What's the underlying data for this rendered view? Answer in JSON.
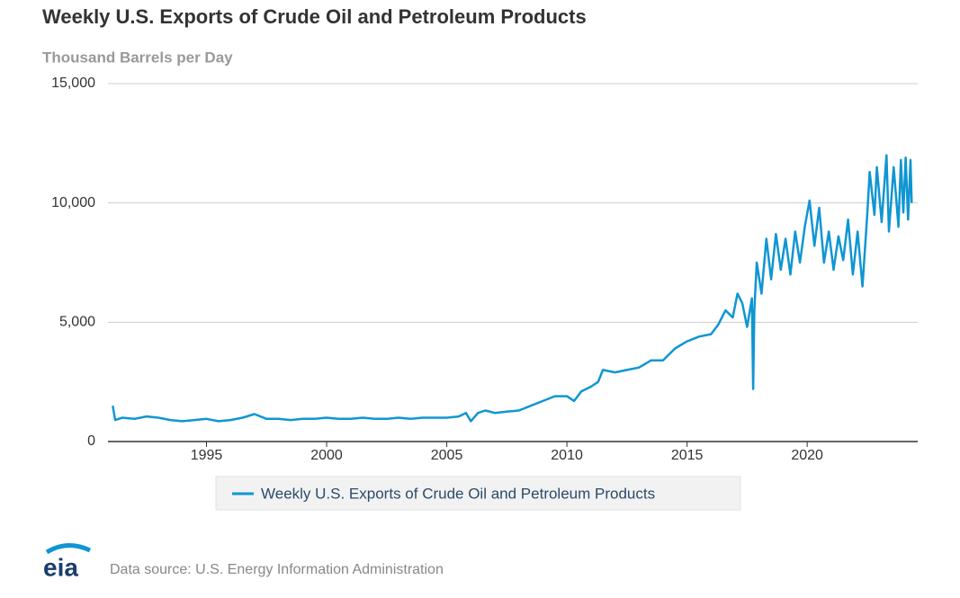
{
  "chart_data": {
    "type": "line",
    "title": "Weekly U.S. Exports of Crude Oil and Petroleum Products",
    "y_label": "Thousand Barrels per Day",
    "source": "Data source: U.S. Energy Information Administration",
    "logo": "eia",
    "xlim": [
      1990.9,
      2024.6
    ],
    "xticks": [
      1995,
      2000,
      2005,
      2010,
      2015,
      2020
    ],
    "ylim": [
      0,
      15000
    ],
    "yticks": [
      0,
      {
        "value": 5000,
        "label": "5,000"
      },
      {
        "value": 10000,
        "label": "10,000"
      },
      {
        "value": 15000,
        "label": "15,000"
      }
    ],
    "grid": true,
    "x": [
      1991.1,
      1991.2,
      1991.5,
      1992,
      1992.5,
      1993,
      1993.5,
      1994,
      1994.5,
      1995,
      1995.5,
      1996,
      1996.5,
      1997,
      1997.5,
      1998,
      1998.5,
      1999,
      1999.5,
      2000,
      2000.5,
      2001,
      2001.5,
      2002,
      2002.5,
      2003,
      2003.5,
      2004,
      2004.5,
      2005,
      2005.5,
      2005.8,
      2006,
      2006.3,
      2006.6,
      2007,
      2007.5,
      2008,
      2008.5,
      2009,
      2009.5,
      2010,
      2010.3,
      2010.6,
      2011,
      2011.3,
      2011.5,
      2012,
      2012.5,
      2013,
      2013.5,
      2014,
      2014.5,
      2015,
      2015.5,
      2016,
      2016.3,
      2016.6,
      2016.9,
      2017.1,
      2017.3,
      2017.5,
      2017.7,
      2017.75,
      2017.8,
      2017.9,
      2018.1,
      2018.3,
      2018.5,
      2018.7,
      2018.9,
      2019.1,
      2019.3,
      2019.5,
      2019.7,
      2019.9,
      2020.1,
      2020.3,
      2020.5,
      2020.7,
      2020.9,
      2021.1,
      2021.3,
      2021.5,
      2021.7,
      2021.9,
      2022.1,
      2022.3,
      2022.5,
      2022.6,
      2022.8,
      2022.9,
      2023.1,
      2023.3,
      2023.4,
      2023.6,
      2023.8,
      2023.9,
      2024.0,
      2024.1,
      2024.2,
      2024.3,
      2024.35
    ],
    "series": [
      {
        "name": "Weekly U.S. Exports of Crude Oil and Petroleum Products",
        "color": "#0f96d2",
        "values": [
          1500,
          900,
          1000,
          950,
          1050,
          1000,
          900,
          850,
          900,
          950,
          850,
          900,
          1000,
          1150,
          950,
          950,
          900,
          950,
          950,
          1000,
          950,
          950,
          1000,
          950,
          950,
          1000,
          950,
          1000,
          1000,
          1000,
          1050,
          1200,
          850,
          1200,
          1300,
          1200,
          1250,
          1300,
          1500,
          1700,
          1900,
          1900,
          1700,
          2100,
          2300,
          2500,
          3000,
          2900,
          3000,
          3100,
          3400,
          3400,
          3900,
          4200,
          4400,
          4500,
          4900,
          5500,
          5200,
          6200,
          5800,
          4800,
          6000,
          2200,
          5500,
          7500,
          6200,
          8500,
          6800,
          8700,
          7200,
          8500,
          7000,
          8800,
          7500,
          9000,
          10100,
          8200,
          9800,
          7500,
          8800,
          7200,
          8600,
          7600,
          9300,
          7000,
          8800,
          6500,
          9500,
          11300,
          9500,
          11500,
          9200,
          12000,
          8800,
          11500,
          9000,
          11800,
          9600,
          11900,
          9300,
          11800,
          10000
        ]
      }
    ]
  }
}
